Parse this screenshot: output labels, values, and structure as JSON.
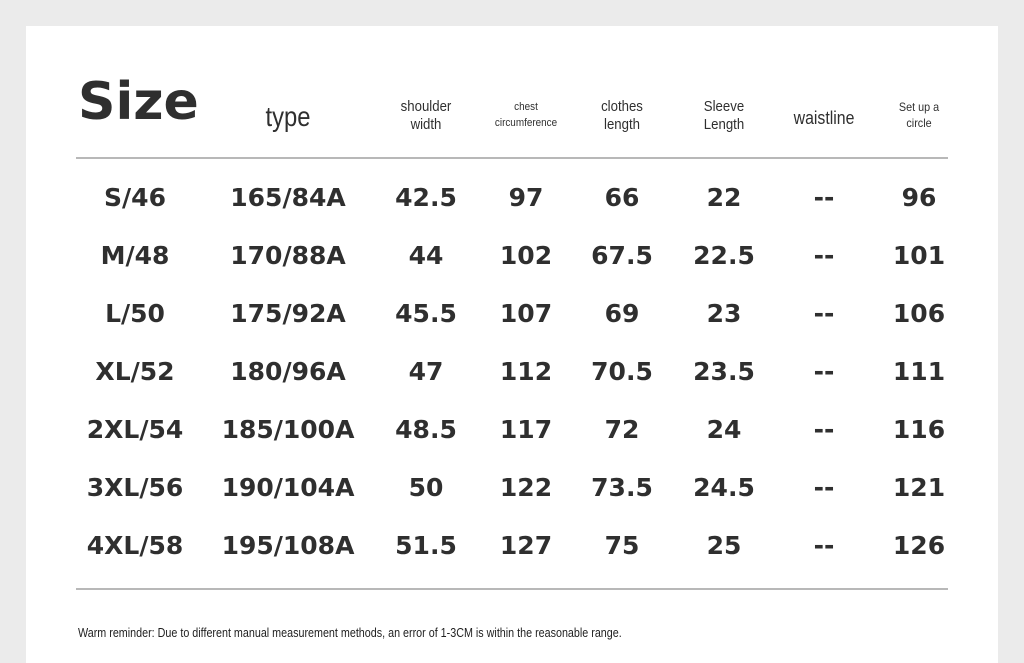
{
  "title": "Size",
  "headers": {
    "type": "type",
    "shoulder_width": [
      "shoulder",
      "width"
    ],
    "chest": [
      "chest",
      "circumference"
    ],
    "clothes_length": [
      "clothes",
      "length"
    ],
    "sleeve_length": [
      "Sleeve",
      "Length"
    ],
    "waistline": "waistline",
    "set_up_circle": [
      "Set up a",
      "circle"
    ]
  },
  "rows": [
    [
      "S/46",
      "165/84A",
      "42.5",
      "97",
      "66",
      "22",
      "--",
      "96"
    ],
    [
      "M/48",
      "170/88A",
      "44",
      "102",
      "67.5",
      "22.5",
      "--",
      "101"
    ],
    [
      "L/50",
      "175/92A",
      "45.5",
      "107",
      "69",
      "23",
      "--",
      "106"
    ],
    [
      "XL/52",
      "180/96A",
      "47",
      "112",
      "70.5",
      "23.5",
      "--",
      "111"
    ],
    [
      "2XL/54",
      "185/100A",
      "48.5",
      "117",
      "72",
      "24",
      "--",
      "116"
    ],
    [
      "3XL/56",
      "190/104A",
      "50",
      "122",
      "73.5",
      "24.5",
      "--",
      "121"
    ],
    [
      "4XL/58",
      "195/108A",
      "51.5",
      "127",
      "75",
      "25",
      "--",
      "126"
    ]
  ],
  "footer": "Warm reminder: Due to different manual measurement methods, an error of 1-3CM is within the reasonable range."
}
